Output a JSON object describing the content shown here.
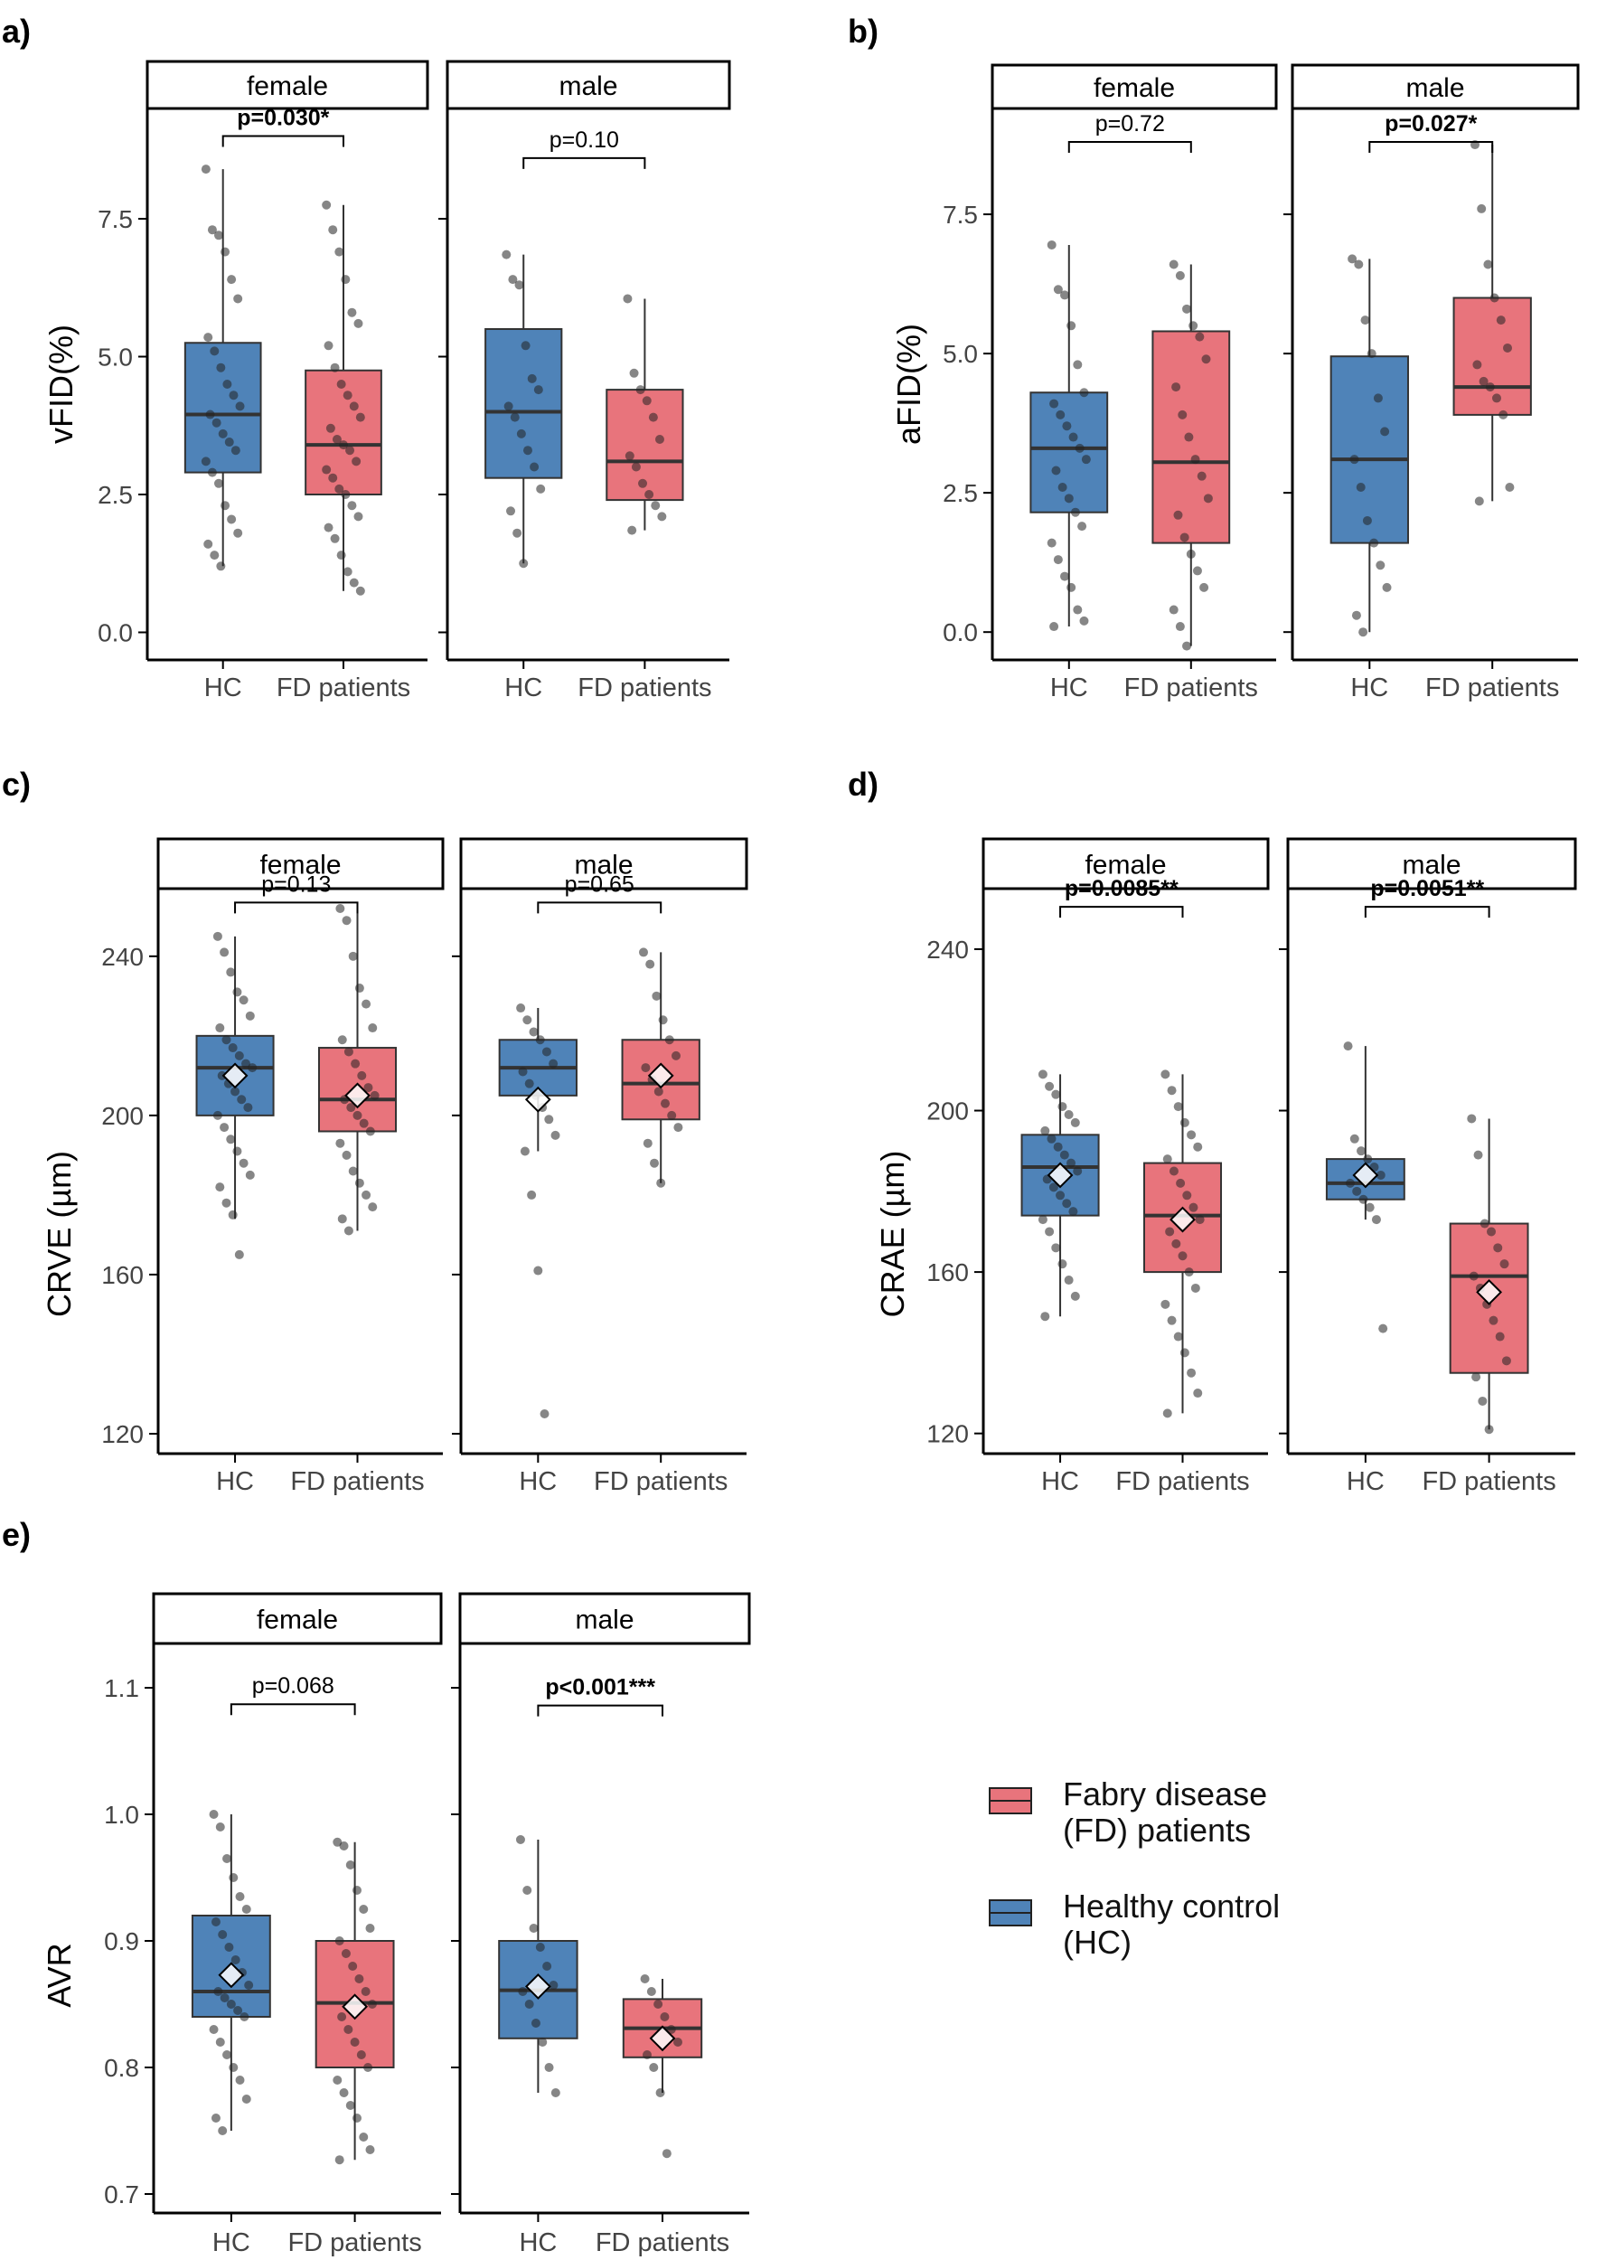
{
  "colors": {
    "hc": "#4F83B8",
    "fd": "#E8747C",
    "axis": "#000000",
    "tick": "#444444",
    "point": "#222222"
  },
  "legend": {
    "title": "",
    "items": [
      {
        "key": "fd",
        "label_line1": "Fabry disease",
        "label_line2": "(FD) patients"
      },
      {
        "key": "hc",
        "label_line1": "Healthy control",
        "label_line2": "(HC)"
      }
    ]
  },
  "chart_data": [
    {
      "panel": "a)",
      "type": "boxplot",
      "ylabel": "vFID(%)",
      "ylim": [
        -0.5,
        9.5
      ],
      "yticks": [
        "0.0",
        "2.5",
        "5.0",
        "7.5"
      ],
      "ytick_values": [
        0,
        2.5,
        5,
        7.5
      ],
      "categories": [
        "HC",
        "FD patients"
      ],
      "facets": [
        "female",
        "male"
      ],
      "groups": {
        "female": {
          "HC": {
            "q1": 2.9,
            "median": 3.95,
            "q3": 5.25,
            "min": 1.2,
            "max": 8.4,
            "mean": null,
            "points": [
              8.4,
              7.3,
              7.2,
              6.9,
              6.4,
              6.05,
              5.35,
              5.1,
              4.8,
              4.5,
              4.3,
              4.1,
              3.95,
              3.8,
              3.6,
              3.45,
              3.3,
              3.1,
              2.9,
              2.7,
              2.3,
              2.05,
              1.8,
              1.6,
              1.4,
              1.2
            ]
          },
          "FD patients": {
            "q1": 2.5,
            "median": 3.4,
            "q3": 4.75,
            "min": 0.75,
            "max": 7.75,
            "mean": null,
            "points": [
              7.75,
              7.3,
              6.9,
              6.4,
              5.8,
              5.6,
              5.2,
              4.8,
              4.5,
              4.3,
              4.1,
              3.9,
              3.7,
              3.5,
              3.4,
              3.3,
              3.1,
              2.95,
              2.8,
              2.6,
              2.5,
              2.3,
              2.1,
              1.9,
              1.7,
              1.4,
              1.1,
              0.9,
              0.75
            ]
          }
        },
        "male": {
          "HC": {
            "q1": 2.8,
            "median": 4.0,
            "q3": 5.5,
            "min": 1.25,
            "max": 6.85,
            "mean": null,
            "points": [
              6.85,
              6.4,
              6.3,
              5.2,
              4.6,
              4.4,
              4.1,
              3.9,
              3.6,
              3.3,
              3.0,
              2.6,
              2.2,
              1.8,
              1.25
            ]
          },
          "FD patients": {
            "q1": 2.4,
            "median": 3.1,
            "q3": 4.4,
            "min": 1.85,
            "max": 6.05,
            "mean": null,
            "points": [
              6.05,
              4.7,
              4.4,
              4.2,
              3.9,
              3.5,
              3.2,
              3.0,
              2.7,
              2.5,
              2.3,
              2.1,
              1.85
            ]
          }
        }
      },
      "pvalues": {
        "female": {
          "text": "p=0.030*",
          "bold": true,
          "y": 9.0
        },
        "male": {
          "text": "p=0.10",
          "bold": false,
          "y": 8.6
        }
      }
    },
    {
      "panel": "b)",
      "type": "boxplot",
      "ylabel": "aFID(%)",
      "ylim": [
        -0.5,
        9.4
      ],
      "yticks": [
        "0.0",
        "2.5",
        "5.0",
        "7.5"
      ],
      "ytick_values": [
        0,
        2.5,
        5,
        7.5
      ],
      "categories": [
        "HC",
        "FD patients"
      ],
      "facets": [
        "female",
        "male"
      ],
      "groups": {
        "female": {
          "HC": {
            "q1": 2.15,
            "median": 3.3,
            "q3": 4.3,
            "min": 0.1,
            "max": 6.95,
            "mean": null,
            "points": [
              6.95,
              6.15,
              6.05,
              5.5,
              4.8,
              4.3,
              4.1,
              3.9,
              3.7,
              3.5,
              3.3,
              3.1,
              2.9,
              2.6,
              2.4,
              2.15,
              1.9,
              1.6,
              1.3,
              1.0,
              0.8,
              0.4,
              0.2,
              0.1
            ]
          },
          "FD patients": {
            "q1": 1.6,
            "median": 3.05,
            "q3": 5.4,
            "min": -0.25,
            "max": 6.6,
            "mean": null,
            "points": [
              6.6,
              6.4,
              5.8,
              5.5,
              5.3,
              4.9,
              4.4,
              3.9,
              3.5,
              3.1,
              2.8,
              2.4,
              2.1,
              1.7,
              1.4,
              1.1,
              0.8,
              0.4,
              0.1,
              -0.25
            ]
          }
        },
        "male": {
          "HC": {
            "q1": 1.6,
            "median": 3.1,
            "q3": 4.95,
            "min": 0.0,
            "max": 6.7,
            "mean": null,
            "points": [
              6.7,
              6.6,
              5.6,
              5.0,
              4.2,
              3.6,
              3.1,
              2.6,
              2.0,
              1.6,
              1.2,
              0.8,
              0.3,
              0.0
            ]
          },
          "FD patients": {
            "q1": 3.9,
            "median": 4.4,
            "q3": 6.0,
            "min": 2.35,
            "max": 8.75,
            "mean": null,
            "points": [
              8.75,
              7.6,
              6.6,
              6.0,
              5.6,
              5.1,
              4.8,
              4.5,
              4.4,
              4.2,
              3.9,
              2.6,
              2.35
            ]
          }
        }
      },
      "pvalues": {
        "female": {
          "text": "p=0.72",
          "bold": false,
          "y": 8.8
        },
        "male": {
          "text": "p=0.027*",
          "bold": true,
          "y": 8.8
        }
      }
    },
    {
      "panel": "c)",
      "type": "boxplot",
      "ylabel": "CRVE (µm)",
      "ylim": [
        115,
        257
      ],
      "yticks": [
        "120",
        "160",
        "200",
        "240"
      ],
      "ytick_values": [
        120,
        160,
        200,
        240
      ],
      "categories": [
        "HC",
        "FD patients"
      ],
      "facets": [
        "female",
        "male"
      ],
      "groups": {
        "female": {
          "HC": {
            "q1": 200,
            "median": 212,
            "q3": 220,
            "min": 174,
            "max": 245,
            "mean": 210,
            "points": [
              245,
              241,
              236,
              231,
              229,
              225,
              222,
              219,
              217,
              215,
              213,
              212,
              210,
              208,
              206,
              204,
              202,
              200,
              197,
              194,
              191,
              188,
              185,
              182,
              178,
              175,
              165
            ]
          },
          "FD patients": {
            "q1": 196,
            "median": 204,
            "q3": 217,
            "min": 171,
            "max": 252,
            "mean": 205,
            "points": [
              252,
              249,
              240,
              232,
              228,
              222,
              219,
              216,
              213,
              210,
              207,
              205,
              204,
              202,
              200,
              198,
              196,
              193,
              190,
              186,
              183,
              180,
              177,
              174,
              171
            ]
          }
        },
        "male": {
          "HC": {
            "q1": 205,
            "median": 212,
            "q3": 219,
            "min": 191,
            "max": 227,
            "mean": 204,
            "points": [
              227,
              224,
              221,
              219,
              216,
              213,
              211,
              208,
              205,
              202,
              199,
              195,
              191,
              180,
              161,
              125
            ]
          },
          "FD patients": {
            "q1": 199,
            "median": 208,
            "q3": 219,
            "min": 183,
            "max": 241,
            "mean": 210,
            "points": [
              241,
              238,
              230,
              224,
              219,
              215,
              212,
              209,
              206,
              203,
              200,
              197,
              193,
              188,
              183
            ]
          }
        }
      },
      "pvalues": {
        "female": {
          "text": "p=0.13",
          "bold": false,
          "y": 253.5
        },
        "male": {
          "text": "p=0.65",
          "bold": false,
          "y": 253.5
        }
      }
    },
    {
      "panel": "d)",
      "type": "boxplot",
      "ylabel": "CRAE (µm)",
      "ylim": [
        115,
        255
      ],
      "yticks": [
        "120",
        "160",
        "200",
        "240"
      ],
      "ytick_values": [
        120,
        160,
        200,
        240
      ],
      "categories": [
        "HC",
        "FD patients"
      ],
      "facets": [
        "female",
        "male"
      ],
      "groups": {
        "female": {
          "HC": {
            "q1": 174,
            "median": 186,
            "q3": 194,
            "min": 149,
            "max": 209,
            "mean": 184,
            "points": [
              209,
              206,
              204,
              201,
              199,
              197,
              195,
              193,
              191,
              189,
              187,
              185,
              183,
              181,
              179,
              177,
              175,
              173,
              170,
              166,
              162,
              158,
              154,
              149
            ]
          },
          "FD patients": {
            "q1": 160,
            "median": 174,
            "q3": 187,
            "min": 125,
            "max": 209,
            "mean": 173,
            "points": [
              209,
              205,
              201,
              197,
              194,
              191,
              188,
              185,
              182,
              179,
              176,
              173,
              170,
              167,
              164,
              160,
              156,
              152,
              148,
              144,
              140,
              135,
              130,
              125
            ]
          }
        },
        "male": {
          "HC": {
            "q1": 178,
            "median": 182,
            "q3": 188,
            "min": 173,
            "max": 216,
            "mean": 184,
            "points": [
              216,
              193,
              190,
              188,
              186,
              184,
              182,
              180,
              178,
              176,
              173,
              146
            ]
          },
          "FD patients": {
            "q1": 135,
            "median": 159,
            "q3": 172,
            "min": 121,
            "max": 198,
            "mean": 155,
            "points": [
              198,
              189,
              172,
              170,
              166,
              162,
              159,
              156,
              152,
              148,
              144,
              138,
              134,
              128,
              121
            ]
          }
        }
      },
      "pvalues": {
        "female": {
          "text": "p=0.0085**",
          "bold": true,
          "y": 250.5
        },
        "male": {
          "text": "p=0.0051**",
          "bold": true,
          "y": 250.5
        }
      }
    },
    {
      "panel": "e)",
      "type": "boxplot",
      "ylabel": "AVR",
      "ylim": [
        0.685,
        1.135
      ],
      "yticks": [
        "0.7",
        "0.8",
        "0.9",
        "1.0",
        "1.1"
      ],
      "ytick_values": [
        0.7,
        0.8,
        0.9,
        1.0,
        1.1
      ],
      "categories": [
        "HC",
        "FD patients"
      ],
      "facets": [
        "female",
        "male"
      ],
      "groups": {
        "female": {
          "HC": {
            "q1": 0.84,
            "median": 0.86,
            "q3": 0.92,
            "min": 0.75,
            "max": 1.0,
            "mean": 0.873,
            "points": [
              1.0,
              0.99,
              0.965,
              0.95,
              0.935,
              0.925,
              0.915,
              0.905,
              0.895,
              0.885,
              0.875,
              0.865,
              0.86,
              0.855,
              0.85,
              0.845,
              0.84,
              0.83,
              0.82,
              0.81,
              0.8,
              0.79,
              0.775,
              0.76,
              0.75
            ]
          },
          "FD patients": {
            "q1": 0.8,
            "median": 0.851,
            "q3": 0.9,
            "min": 0.727,
            "max": 0.978,
            "mean": 0.848,
            "points": [
              0.978,
              0.975,
              0.96,
              0.94,
              0.925,
              0.91,
              0.9,
              0.89,
              0.88,
              0.87,
              0.86,
              0.85,
              0.84,
              0.83,
              0.82,
              0.81,
              0.8,
              0.79,
              0.78,
              0.77,
              0.76,
              0.745,
              0.735,
              0.727
            ]
          }
        },
        "male": {
          "HC": {
            "q1": 0.823,
            "median": 0.861,
            "q3": 0.9,
            "min": 0.78,
            "max": 0.98,
            "mean": 0.864,
            "points": [
              0.98,
              0.94,
              0.91,
              0.895,
              0.88,
              0.865,
              0.86,
              0.85,
              0.835,
              0.82,
              0.8,
              0.78
            ]
          },
          "FD patients": {
            "q1": 0.808,
            "median": 0.831,
            "q3": 0.854,
            "min": 0.78,
            "max": 0.87,
            "mean": 0.823,
            "points": [
              0.87,
              0.86,
              0.85,
              0.84,
              0.83,
              0.82,
              0.81,
              0.8,
              0.78,
              0.732
            ]
          }
        }
      },
      "pvalues": {
        "female": {
          "text": "p=0.068",
          "bold": false,
          "y": 1.087
        },
        "male": {
          "text": "p<0.001***",
          "bold": true,
          "y": 1.086
        }
      }
    }
  ]
}
